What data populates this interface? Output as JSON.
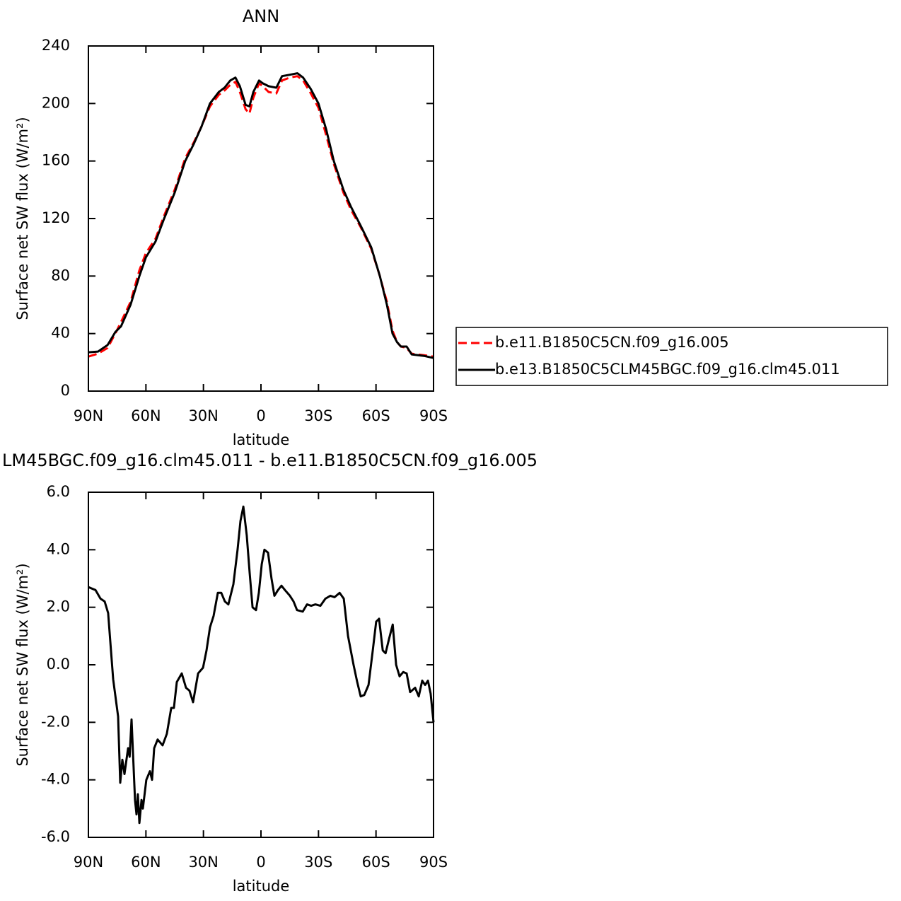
{
  "chart_data": [
    {
      "type": "line",
      "title": "ANN",
      "xlabel": "latitude",
      "ylabel": "Surface net SW flux (W/m²)",
      "x": [
        90,
        85,
        80,
        76,
        73,
        68,
        63.4,
        60,
        55,
        50.5,
        45,
        39.5,
        35,
        31,
        26.6,
        22,
        19,
        16,
        13.3,
        11,
        8,
        6,
        4,
        1,
        -1,
        -4,
        -8,
        -11,
        -15,
        -19,
        -22,
        -26,
        -30,
        -34,
        -38,
        -43,
        -47,
        -52,
        -57.5,
        -62,
        -65.7,
        -68.6,
        -71,
        -73,
        -76,
        -78.6,
        -85,
        -90
      ],
      "series": [
        {
          "name": "b.e11.B1850C5CN.f09_g16.005",
          "color": "#ff0000",
          "dash": true,
          "values": [
            24,
            26,
            30,
            40,
            48,
            62,
            84,
            96,
            106,
            122,
            140,
            162,
            173,
            184,
            198,
            206,
            209,
            213,
            215,
            208,
            196,
            193,
            204,
            214,
            212,
            208,
            207,
            216,
            218,
            219,
            216,
            207,
            197,
            178,
            158,
            138,
            126,
            114,
            99,
            80,
            62,
            42,
            34,
            31,
            30,
            26,
            25,
            24
          ]
        },
        {
          "name": "b.e13.B1850C5CLM45BGC.f09_g16.clm45.011",
          "color": "#000000",
          "dash": false,
          "values": [
            27,
            27.5,
            32,
            41,
            45,
            60,
            80,
            93,
            104,
            120,
            138,
            160,
            172,
            184,
            200,
            208,
            211,
            216,
            218,
            212,
            199,
            198,
            208,
            216,
            214,
            212,
            211,
            219,
            220,
            221,
            218,
            210,
            200,
            182,
            160,
            140,
            128,
            115,
            100,
            80,
            60,
            40,
            34,
            31,
            31,
            25.5,
            24.5,
            23
          ]
        }
      ],
      "xlim": [
        90,
        -90
      ],
      "xticks": [
        {
          "value": 90,
          "label": "90N"
        },
        {
          "value": 60,
          "label": "60N"
        },
        {
          "value": 30,
          "label": "30N"
        },
        0,
        {
          "value": -30,
          "label": "30S"
        },
        {
          "value": -60,
          "label": "60S"
        },
        {
          "value": -90,
          "label": "90S"
        }
      ],
      "ylim": [
        0,
        240
      ],
      "yticks": [
        0,
        40,
        80,
        120,
        160,
        200,
        240
      ],
      "legend": "right"
    },
    {
      "type": "line",
      "title": "LM45BGC.f09_g16.clm45.011 - b.e11.B1850C5CN.f09_g16.005",
      "xlabel": "latitude",
      "ylabel": "Surface net SW flux (W/m²)",
      "x": [
        90,
        86.3,
        83.7,
        81.5,
        79.7,
        77.1,
        74.5,
        73.4,
        72.3,
        71.2,
        69.3,
        68.5,
        67.5,
        65.7,
        64.9,
        64.2,
        63.4,
        62.3,
        61.6,
        59.8,
        57.9,
        56.8,
        55.7,
        53.9,
        51.3,
        49.1,
        46.8,
        45.4,
        43.9,
        41.3,
        39.1,
        37.3,
        35.4,
        32.8,
        30.2,
        28.4,
        26.6,
        24.7,
        22.5,
        20.7,
        18.8,
        17,
        14.4,
        12.2,
        10.7,
        9.2,
        7.4,
        5.9,
        4.4,
        2.6,
        1.1,
        -0.4,
        -1.8,
        -3.7,
        -5.5,
        -7,
        -8.9,
        -10.7,
        -12.5,
        -15.1,
        -17,
        -18.8,
        -21.8,
        -24,
        -26.2,
        -28.4,
        -31,
        -33.6,
        -36.2,
        -38.4,
        -41,
        -43.2,
        -45.4,
        -48.3,
        -50.2,
        -52,
        -53.9,
        -56.1,
        -58.3,
        -60.1,
        -61.6,
        -63.5,
        -65,
        -66.8,
        -68.7,
        -70.5,
        -72.3,
        -74.2,
        -76,
        -77.8,
        -80.4,
        -82.3,
        -84.1,
        -85.6,
        -87.1,
        -88.5,
        -90
      ],
      "series": [
        {
          "name": null,
          "color": "#000000",
          "dash": false,
          "values": [
            2.7,
            2.6,
            2.3,
            2.2,
            1.8,
            -0.5,
            -1.8,
            -4.1,
            -3.3,
            -3.8,
            -2.9,
            -3.2,
            -1.9,
            -4.7,
            -5.2,
            -4.5,
            -5.5,
            -4.7,
            -5.0,
            -4.0,
            -3.7,
            -4.0,
            -2.9,
            -2.6,
            -2.8,
            -2.4,
            -1.5,
            -1.5,
            -0.6,
            -0.3,
            -0.8,
            -0.9,
            -1.3,
            -0.3,
            -0.1,
            0.5,
            1.3,
            1.7,
            2.5,
            2.5,
            2.2,
            2.1,
            2.8,
            4.0,
            5.0,
            5.5,
            4.5,
            3.2,
            2.0,
            1.9,
            2.5,
            3.5,
            4.0,
            3.9,
            3.0,
            2.4,
            2.6,
            2.75,
            2.6,
            2.4,
            2.2,
            1.9,
            1.85,
            2.1,
            2.05,
            2.1,
            2.05,
            2.3,
            2.4,
            2.35,
            2.5,
            2.3,
            1.0,
            0.0,
            -0.6,
            -1.1,
            -1.05,
            -0.7,
            0.5,
            1.5,
            1.6,
            0.5,
            0.4,
            0.9,
            1.4,
            0.0,
            -0.4,
            -0.25,
            -0.3,
            -0.95,
            -0.8,
            -1.1,
            -0.55,
            -0.7,
            -0.55,
            -1.0,
            -2.0
          ]
        }
      ],
      "xlim": [
        90,
        -90
      ],
      "xticks": [
        {
          "value": 90,
          "label": "90N"
        },
        {
          "value": 60,
          "label": "60N"
        },
        {
          "value": 30,
          "label": "30N"
        },
        0,
        {
          "value": -30,
          "label": "30S"
        },
        {
          "value": -60,
          "label": "60S"
        },
        {
          "value": -90,
          "label": "90S"
        }
      ],
      "ylim": [
        -6,
        6
      ],
      "yticks": [
        {
          "value": -6,
          "label": "-6.0"
        },
        {
          "value": -4,
          "label": "-4.0"
        },
        {
          "value": -2,
          "label": "-2.0"
        },
        {
          "value": 0,
          "label": "0.0"
        },
        {
          "value": 2,
          "label": "2.0"
        },
        {
          "value": 4,
          "label": "4.0"
        },
        {
          "value": 6,
          "label": "6.0"
        }
      ]
    }
  ]
}
